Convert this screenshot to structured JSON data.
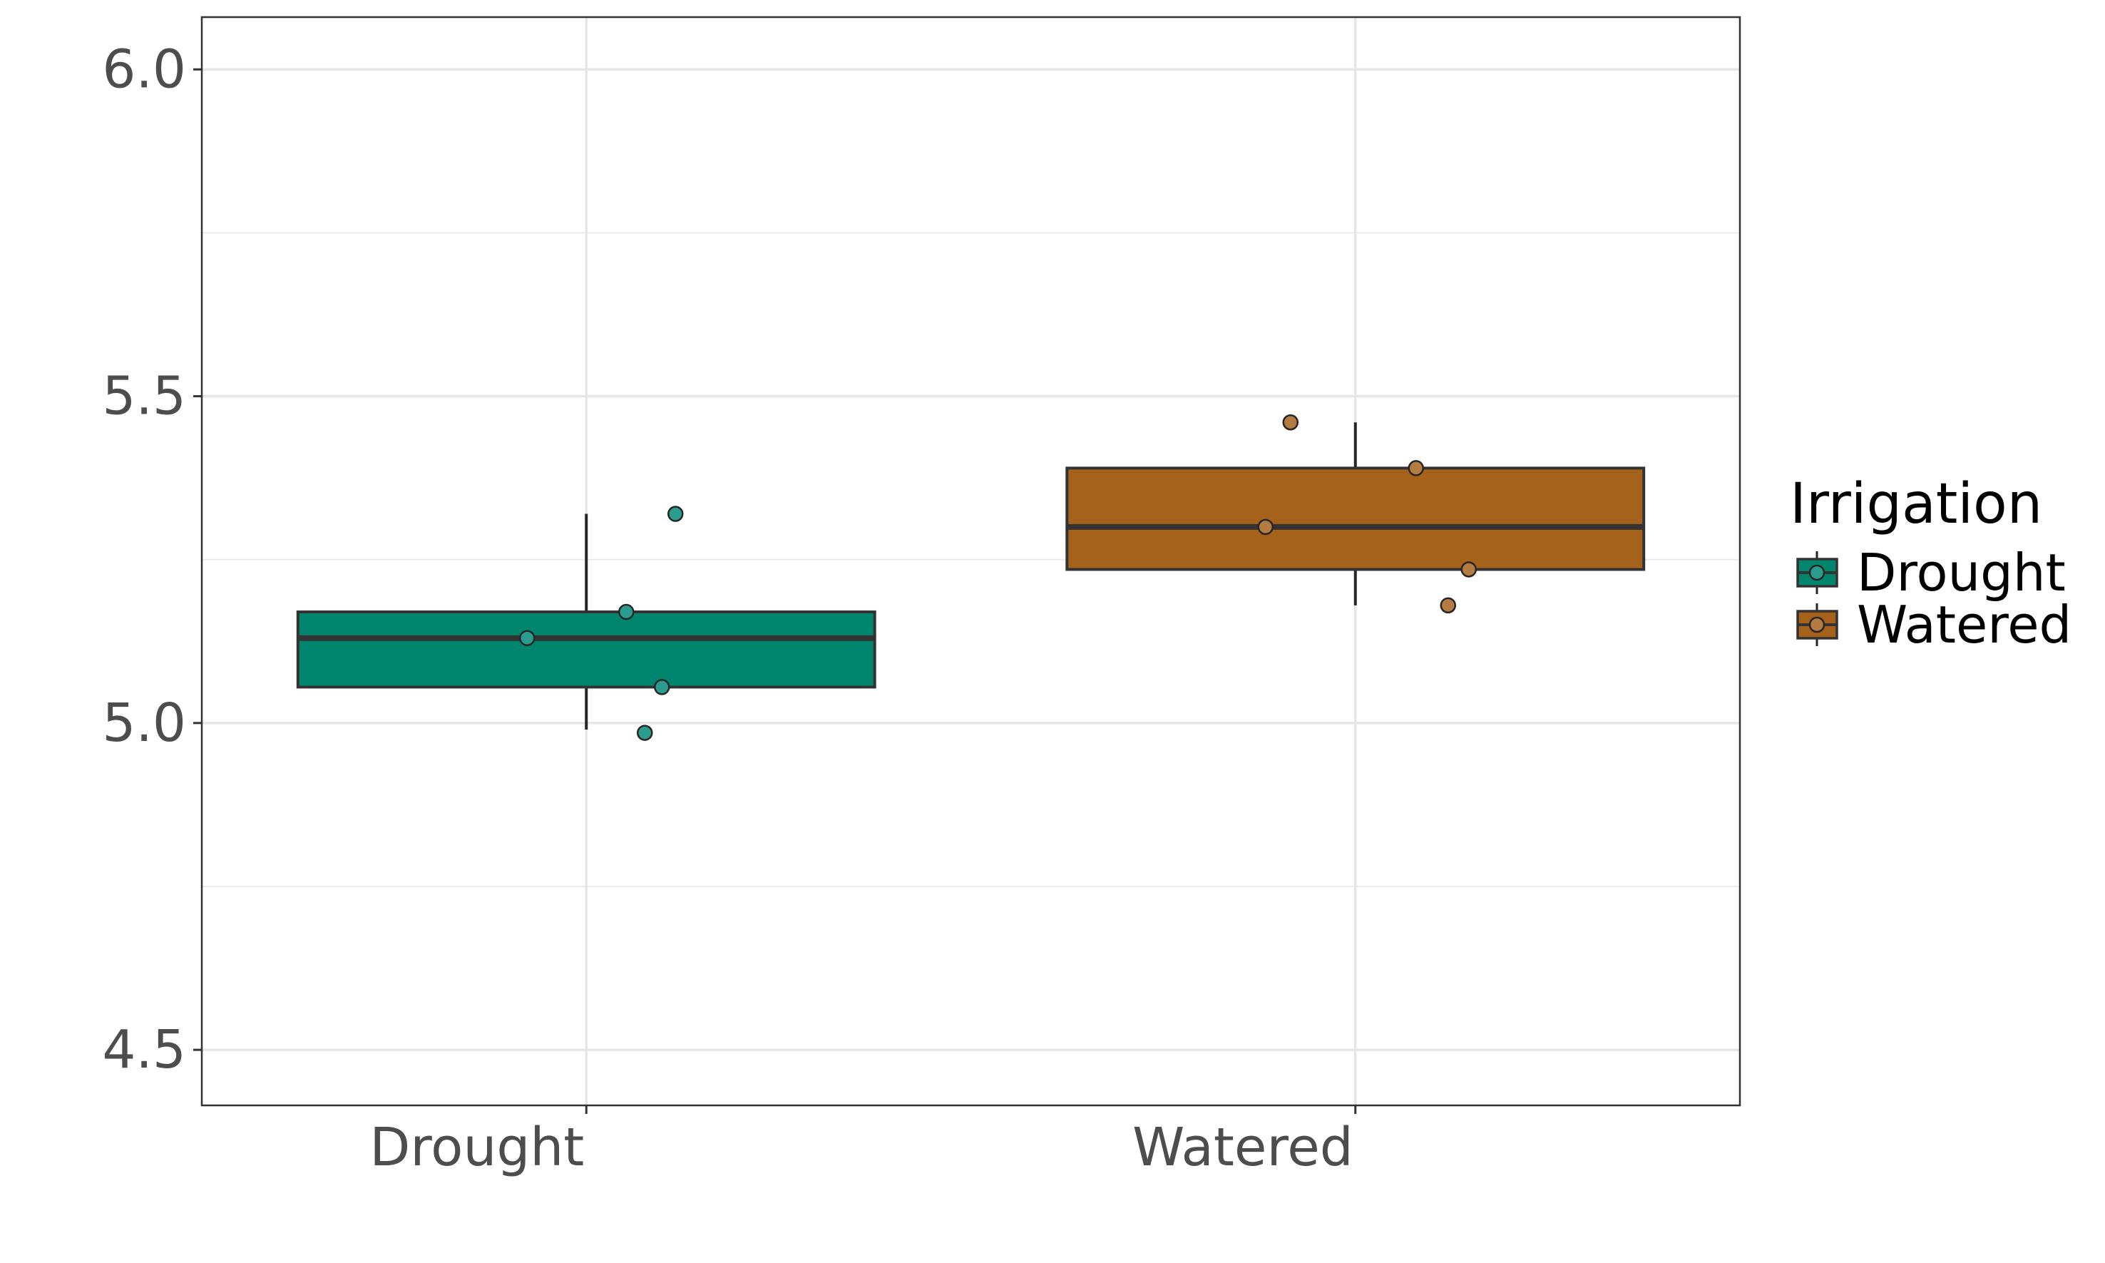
{
  "chart_data": {
    "type": "box",
    "title": "",
    "xlabel": "",
    "ylabel": "",
    "categories": [
      "Drought",
      "Watered"
    ],
    "y_ticks": [
      4.5,
      5.0,
      5.5,
      6.0
    ],
    "y_tick_labels": [
      "4.5",
      "5.0",
      "5.5",
      "6.0"
    ],
    "ylim": [
      4.415,
      6.08
    ],
    "grid": true,
    "legend": {
      "title": "Irrigation",
      "position": "right",
      "items": [
        "Drought",
        "Watered"
      ]
    },
    "series": [
      {
        "name": "Drought",
        "color": "#00866f",
        "point_color": "#2b9d8e",
        "box": {
          "whisker_low": 4.99,
          "q1": 5.055,
          "median": 5.13,
          "q3": 5.17,
          "whisker_high": 5.32
        },
        "points": [
          5.13,
          5.17,
          5.055,
          4.985,
          5.32
        ]
      },
      {
        "name": "Watered",
        "color": "#a6611a",
        "point_color": "#b47c43",
        "box": {
          "whisker_low": 5.18,
          "q1": 5.235,
          "median": 5.3,
          "q3": 5.39,
          "whisker_high": 5.46
        },
        "points": [
          5.3,
          5.46,
          5.39,
          5.235,
          5.18
        ]
      }
    ]
  }
}
